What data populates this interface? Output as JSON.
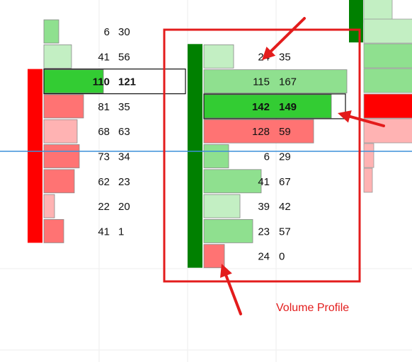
{
  "annotation": {
    "label": "Volume Profile",
    "color": "#e31c1c"
  },
  "chart_data": {
    "type": "footprint",
    "price_rows": 10,
    "colors": {
      "bid_dark": "#ff7373",
      "bid_light": "#ffb3b3",
      "ask_dark": "#8fe08f",
      "ask_light": "#c3efc3",
      "poc_fill": "#33cc33",
      "bar_up": "#008000",
      "bar_down": "#ff0000",
      "price_line": "#3b8fd9",
      "highlight": "#e31c1c"
    },
    "candles": [
      {
        "direction": "down",
        "body_rows": [
          2,
          8
        ],
        "levels": [
          {
            "row": 0,
            "bid": 6,
            "ask": 30
          },
          {
            "row": 1,
            "bid": 41,
            "ask": 56
          },
          {
            "row": 2,
            "bid": 110,
            "ask": 121,
            "poc": true
          },
          {
            "row": 3,
            "bid": 81,
            "ask": 35
          },
          {
            "row": 4,
            "bid": 68,
            "ask": 63
          },
          {
            "row": 5,
            "bid": 73,
            "ask": 34
          },
          {
            "row": 6,
            "bid": 62,
            "ask": 23
          },
          {
            "row": 7,
            "bid": 22,
            "ask": 20
          },
          {
            "row": 8,
            "bid": 41,
            "ask": 1
          }
        ]
      },
      {
        "direction": "up",
        "body_rows": [
          1,
          9
        ],
        "levels": [
          {
            "row": 1,
            "bid": 24,
            "ask": 35
          },
          {
            "row": 2,
            "bid": 115,
            "ask": 167
          },
          {
            "row": 3,
            "bid": 142,
            "ask": 149,
            "poc": true
          },
          {
            "row": 4,
            "bid": 128,
            "ask": 59
          },
          {
            "row": 5,
            "bid": 6,
            "ask": 29
          },
          {
            "row": 6,
            "bid": 41,
            "ask": 67
          },
          {
            "row": 7,
            "bid": 39,
            "ask": 42
          },
          {
            "row": 8,
            "bid": 23,
            "ask": 57
          },
          {
            "row": 9,
            "bid": 24,
            "ask": 0
          }
        ]
      }
    ]
  }
}
